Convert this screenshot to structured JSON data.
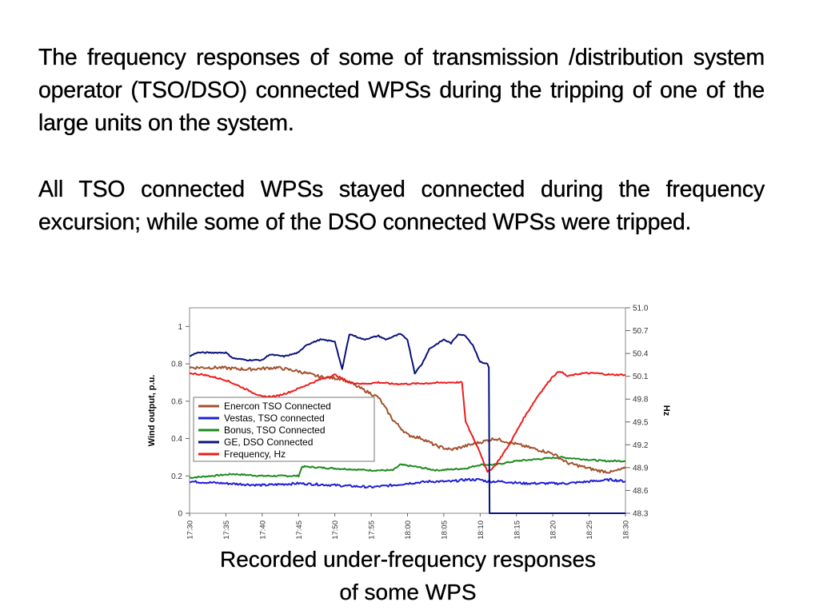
{
  "paragraphs": [
    " The frequency responses of some of transmission /distribution system operator (TSO/DSO) connected WPSs during the tripping of one of the large units on the system.",
    "All TSO connected WPSs stayed connected during the frequency excursion; while some of the DSO connected WPSs were tripped."
  ],
  "caption_lines": [
    "Recorded under-frequency responses",
    "of some WPS"
  ],
  "chart_data": {
    "type": "line",
    "title": "",
    "xlabel": "",
    "ylabel": "Wind output, p.u.",
    "y2label": "Hz",
    "x_ticks": [
      "17:30",
      "17:35",
      "17:40",
      "17:45",
      "17:50",
      "17:55",
      "18:00",
      "18:05",
      "18:10",
      "18:15",
      "18:20",
      "18:25",
      "18:30"
    ],
    "xlim": [
      "17:30",
      "18:30"
    ],
    "ylim": [
      0,
      1.1
    ],
    "y_ticks": [
      0,
      0.2,
      0.4,
      0.6,
      0.8,
      1
    ],
    "y2lim": [
      48.3,
      51
    ],
    "y2_ticks": [
      48.3,
      48.6,
      48.9,
      49.2,
      49.5,
      49.8,
      50.1,
      50.4,
      50.7,
      51
    ],
    "grid": false,
    "legend_position": "center-left",
    "series": [
      {
        "name": "Enercon TSO Connected",
        "color": "#a0522d",
        "axis": "left",
        "noise": 0.008,
        "points": [
          [
            "17:30",
            0.78
          ],
          [
            "17:34",
            0.78
          ],
          [
            "17:38",
            0.77
          ],
          [
            "17:42",
            0.78
          ],
          [
            "17:45",
            0.76
          ],
          [
            "17:48",
            0.73
          ],
          [
            "17:51",
            0.72
          ],
          [
            "17:54",
            0.66
          ],
          [
            "17:56",
            0.62
          ],
          [
            "17:58",
            0.5
          ],
          [
            "18:00",
            0.42
          ],
          [
            "18:02",
            0.4
          ],
          [
            "18:04",
            0.36
          ],
          [
            "18:06",
            0.34
          ],
          [
            "18:08",
            0.36
          ],
          [
            "18:10",
            0.38
          ],
          [
            "18:12",
            0.4
          ],
          [
            "18:14",
            0.38
          ],
          [
            "18:16",
            0.36
          ],
          [
            "18:18",
            0.34
          ],
          [
            "18:20",
            0.32
          ],
          [
            "18:22",
            0.27
          ],
          [
            "18:24",
            0.25
          ],
          [
            "18:26",
            0.23
          ],
          [
            "18:28",
            0.22
          ],
          [
            "18:30",
            0.24
          ]
        ]
      },
      {
        "name": "Vestas, TSO connected",
        "color": "#1f1fd6",
        "axis": "left",
        "noise": 0.006,
        "points": [
          [
            "17:30",
            0.17
          ],
          [
            "17:35",
            0.16
          ],
          [
            "17:40",
            0.15
          ],
          [
            "17:45",
            0.16
          ],
          [
            "17:50",
            0.15
          ],
          [
            "17:55",
            0.14
          ],
          [
            "17:58",
            0.15
          ],
          [
            "18:00",
            0.16
          ],
          [
            "18:03",
            0.17
          ],
          [
            "18:06",
            0.17
          ],
          [
            "18:08",
            0.18
          ],
          [
            "18:10",
            0.18
          ],
          [
            "18:11",
            0.17
          ],
          [
            "18:13",
            0.17
          ],
          [
            "18:16",
            0.16
          ],
          [
            "18:19",
            0.16
          ],
          [
            "18:22",
            0.16
          ],
          [
            "18:25",
            0.17
          ],
          [
            "18:28",
            0.18
          ],
          [
            "18:30",
            0.17
          ]
        ]
      },
      {
        "name": "Bonus, TSO Connected",
        "color": "#1e8a1e",
        "axis": "left",
        "noise": 0.004,
        "points": [
          [
            "17:30",
            0.19
          ],
          [
            "17:33",
            0.2
          ],
          [
            "17:36",
            0.21
          ],
          [
            "17:40",
            0.2
          ],
          [
            "17:43",
            0.2
          ],
          [
            "17:45",
            0.2
          ],
          [
            "17:45.5",
            0.25
          ],
          [
            "17:50",
            0.24
          ],
          [
            "17:55",
            0.23
          ],
          [
            "17:58",
            0.23
          ],
          [
            "17:59",
            0.26
          ],
          [
            "18:01",
            0.25
          ],
          [
            "18:04",
            0.23
          ],
          [
            "18:08",
            0.24
          ],
          [
            "18:10",
            0.26
          ],
          [
            "18:12",
            0.26
          ],
          [
            "18:15",
            0.28
          ],
          [
            "18:18",
            0.29
          ],
          [
            "18:21",
            0.3
          ],
          [
            "18:24",
            0.29
          ],
          [
            "18:27",
            0.28
          ],
          [
            "18:30",
            0.28
          ]
        ]
      },
      {
        "name": "GE, DSO Connected",
        "color": "#0a127a",
        "axis": "left",
        "noise": 0.003,
        "points": [
          [
            "17:30",
            0.84
          ],
          [
            "17:31",
            0.86
          ],
          [
            "17:35",
            0.86
          ],
          [
            "17:36",
            0.83
          ],
          [
            "17:38",
            0.82
          ],
          [
            "17:40",
            0.82
          ],
          [
            "17:41",
            0.85
          ],
          [
            "17:43",
            0.84
          ],
          [
            "17:45",
            0.86
          ],
          [
            "17:46",
            0.9
          ],
          [
            "17:48",
            0.93
          ],
          [
            "17:50",
            0.92
          ],
          [
            "17:51",
            0.77
          ],
          [
            "17:52",
            0.96
          ],
          [
            "17:54",
            0.93
          ],
          [
            "17:56",
            0.95
          ],
          [
            "17:57",
            0.93
          ],
          [
            "17:59",
            0.96
          ],
          [
            "18:00",
            0.93
          ],
          [
            "18:01",
            0.75
          ],
          [
            "18:02",
            0.8
          ],
          [
            "18:03",
            0.88
          ],
          [
            "18:05",
            0.93
          ],
          [
            "18:06",
            0.91
          ],
          [
            "18:07",
            0.96
          ],
          [
            "18:08",
            0.95
          ],
          [
            "18:09",
            0.9
          ],
          [
            "18:10",
            0.81
          ],
          [
            "18:11",
            0.8
          ],
          [
            "18:11.2",
            0.78
          ],
          [
            "18:11.3",
            0.0
          ],
          [
            "18:30",
            0.0
          ]
        ]
      },
      {
        "name": "Frequency, Hz",
        "color": "#ee1c1c",
        "axis": "right",
        "noise": 0.01,
        "points": [
          [
            "17:30",
            50.14
          ],
          [
            "17:32",
            50.12
          ],
          [
            "17:35",
            50.05
          ],
          [
            "17:38",
            49.92
          ],
          [
            "17:40",
            49.83
          ],
          [
            "17:42",
            49.84
          ],
          [
            "17:44",
            49.9
          ],
          [
            "17:46",
            49.98
          ],
          [
            "17:48",
            50.06
          ],
          [
            "17:50",
            50.12
          ],
          [
            "17:52",
            50.02
          ],
          [
            "17:54",
            50.0
          ],
          [
            "17:56",
            50.02
          ],
          [
            "17:58",
            50.0
          ],
          [
            "18:00",
            50.0
          ],
          [
            "18:03",
            50.01
          ],
          [
            "18:06",
            50.02
          ],
          [
            "18:07.5",
            50.02
          ],
          [
            "18:08",
            49.5
          ],
          [
            "18:09",
            49.3
          ],
          [
            "18:10",
            49.1
          ],
          [
            "18:11",
            48.84
          ],
          [
            "18:12",
            48.92
          ],
          [
            "18:14",
            49.2
          ],
          [
            "18:16",
            49.55
          ],
          [
            "18:18",
            49.85
          ],
          [
            "18:20",
            50.1
          ],
          [
            "18:21",
            50.17
          ],
          [
            "18:22",
            50.1
          ],
          [
            "18:24",
            50.14
          ],
          [
            "18:26",
            50.14
          ],
          [
            "18:28",
            50.12
          ],
          [
            "18:30",
            50.12
          ]
        ]
      }
    ]
  }
}
